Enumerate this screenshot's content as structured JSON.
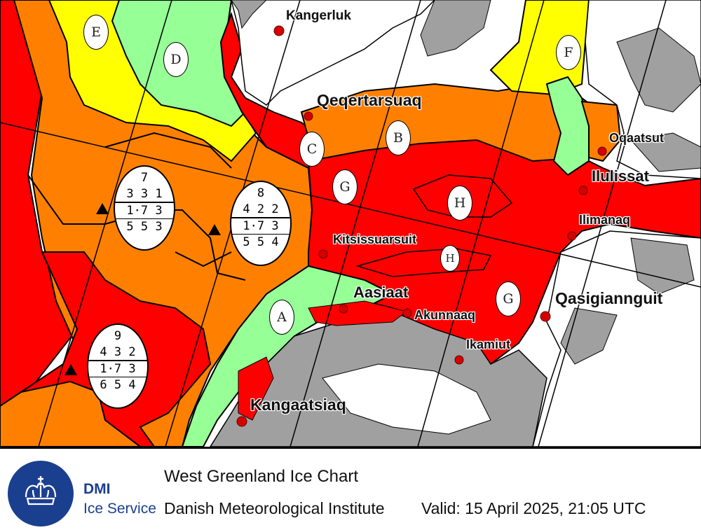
{
  "colors": {
    "very_close_drift_ice": "#ff0000",
    "close_drift_ice": "#ff8000",
    "open_drift_ice": "#ffff00",
    "very_open_drift_ice": "#96ff96",
    "land": "#a0a0a0",
    "open_water_or_fast_ice": "#ffffff",
    "brand": "#1b3f8f"
  },
  "map": {
    "places": [
      {
        "id": "kangerluk",
        "name": "Kangerluk"
      },
      {
        "id": "qeqertarsuaq",
        "name": "Qeqertarsuaq"
      },
      {
        "id": "oqaatsut",
        "name": "Oqaatsut"
      },
      {
        "id": "ilulissat",
        "name": "Ilulissat"
      },
      {
        "id": "ilimanaq",
        "name": "Ilimanaq"
      },
      {
        "id": "kitsissuarsuit",
        "name": "Kitsissuarsuit"
      },
      {
        "id": "aasiaat",
        "name": "Aasiaat"
      },
      {
        "id": "akunnaaq",
        "name": "Akunnaaq"
      },
      {
        "id": "qasigiannguit",
        "name": "Qasigiannguit"
      },
      {
        "id": "ikamiut",
        "name": "Ikamiut"
      },
      {
        "id": "kangaatsiaq",
        "name": "Kangaatsiaq"
      }
    ],
    "zone_labels": [
      "A",
      "B",
      "C",
      "D",
      "E",
      "F",
      "G",
      "G",
      "H",
      "H"
    ],
    "egg_codes": [
      {
        "id": "7",
        "number": "7",
        "concentration": "3 3 1",
        "stage": "1·7 3",
        "form": "5 5 3"
      },
      {
        "id": "8",
        "number": "8",
        "concentration": "4 2 2",
        "stage": "1·7 3",
        "form": "5 5 4"
      },
      {
        "id": "9",
        "number": "9",
        "concentration": "4 3 2",
        "stage": "1·7 3",
        "form": "6 5 4"
      }
    ]
  },
  "footer": {
    "logo_icon": "crown-icon",
    "org_short": "DMI",
    "service": "Ice Service",
    "title": "West Greenland Ice Chart",
    "institute": "Danish Meteorological Institute",
    "valid": "Valid: 15 April 2025, 21:05 UTC"
  }
}
